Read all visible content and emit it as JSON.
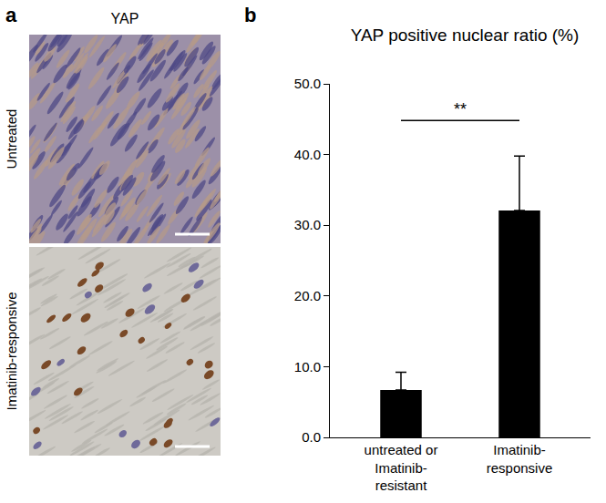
{
  "images_panel": {
    "letter": "a",
    "title": "YAP",
    "rows": [
      "Untreated",
      "Imatinib-responsive"
    ]
  },
  "chart_data": {
    "type": "bar",
    "panel_label": "b",
    "title": "YAP positive nuclear ratio (%)",
    "categories": [
      "untreated or Imatinib-resistant",
      "Imatinib-responsive"
    ],
    "values": [
      6.7,
      32.1
    ],
    "errors": [
      2.5,
      7.7
    ],
    "color": "#000000",
    "significance": "**",
    "ylim": [
      0,
      50
    ],
    "yticks": [
      {
        "value": 0,
        "label": "0.0"
      },
      {
        "value": 10,
        "label": "10.0"
      },
      {
        "value": 20,
        "label": "20.0"
      },
      {
        "value": 30,
        "label": "30.0"
      },
      {
        "value": 40,
        "label": "40.0"
      },
      {
        "value": 50,
        "label": "50.0"
      }
    ],
    "grid": false
  }
}
